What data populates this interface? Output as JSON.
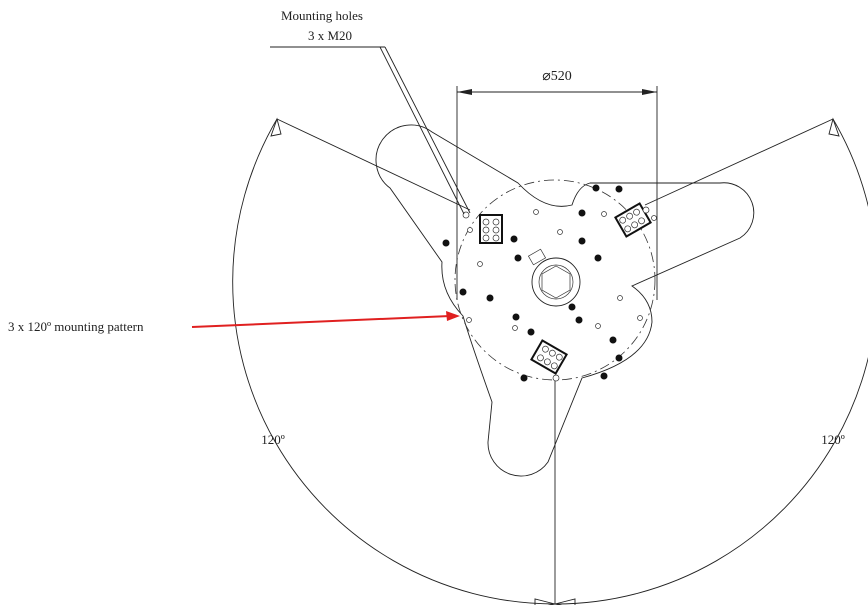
{
  "labels": {
    "mounting_holes": "Mounting holes",
    "mounting_holes_spec": "3 x M20",
    "diameter": "⌀520",
    "pattern": "3 x 120º mounting pattern",
    "angle_left": "120º",
    "angle_right": "120º"
  }
}
